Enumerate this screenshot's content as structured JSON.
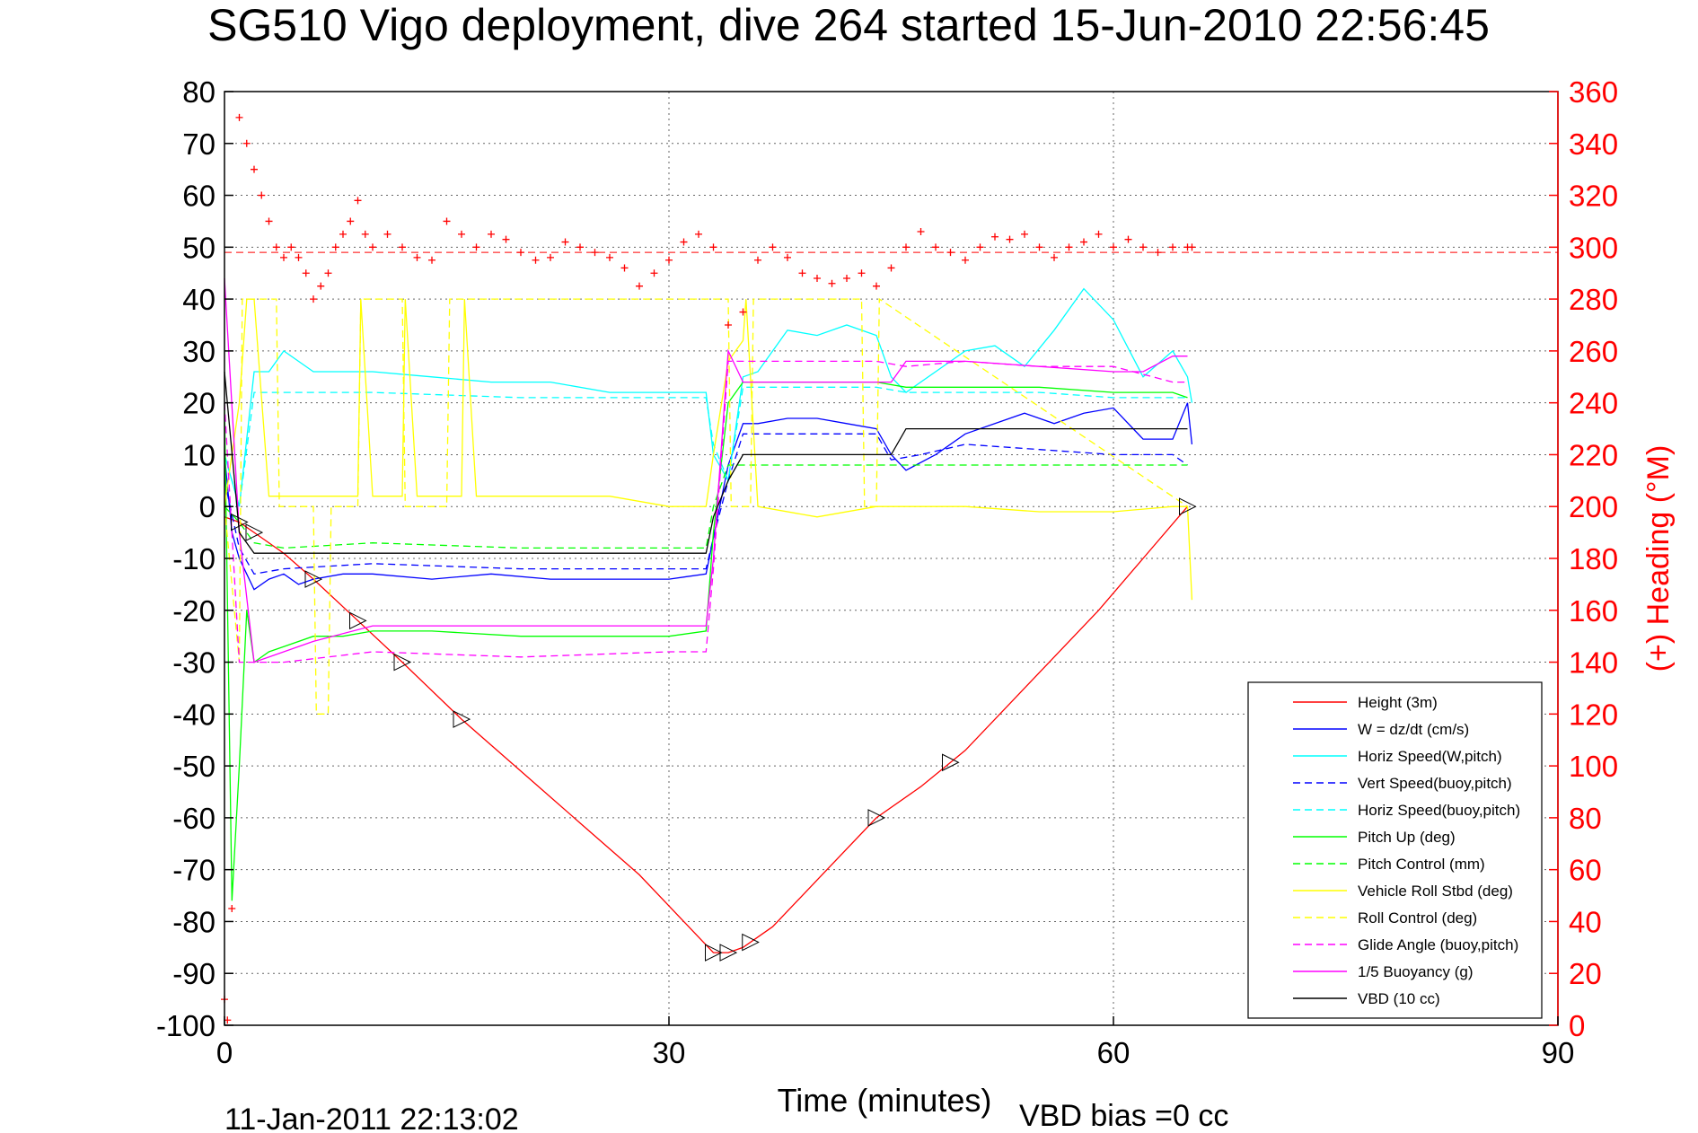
{
  "title": "SG510 Vigo deployment, dive 264 started 15-Jun-2010 22:56:45",
  "footer_left": "11-Jan-2011 22:13:02",
  "footer_right": "VBD bias =0 cc",
  "chart_data": {
    "type": "line",
    "title": "SG510 Vigo deployment, dive 264 started 15-Jun-2010 22:56:45",
    "xlabel": "Time (minutes)",
    "ylabel_right": "(+) Heading (°M)",
    "xlim": [
      0,
      90
    ],
    "ylim": [
      -100,
      80
    ],
    "ylim_right": [
      0,
      360
    ],
    "xticks": [
      "0",
      "30",
      "60",
      "90"
    ],
    "yticks": [
      "80",
      "70",
      "60",
      "50",
      "40",
      "30",
      "20",
      "10",
      "0",
      "-10",
      "-20",
      "-30",
      "-40",
      "-50",
      "-60",
      "-70",
      "-80",
      "-90",
      "-100"
    ],
    "yticks_right": [
      "360",
      "340",
      "320",
      "300",
      "280",
      "260",
      "240",
      "220",
      "200",
      "180",
      "160",
      "140",
      "120",
      "100",
      "80",
      "60",
      "40",
      "20",
      "0"
    ],
    "grid": true,
    "legend_position": "bottom-right",
    "heading_mean_line": 298,
    "colors": {
      "red": "#ff0000",
      "blue": "#0000ff",
      "cyan": "#00ffff",
      "green": "#00ff00",
      "yellow": "#ffff00",
      "magenta": "#ff00ff",
      "black": "#000000"
    },
    "series": [
      {
        "name": "Height (3m)",
        "color": "#ff0000",
        "dash": false,
        "x": [
          0,
          1,
          2,
          4,
          6,
          9,
          12,
          16,
          20,
          24,
          28,
          30,
          32,
          33,
          34,
          35,
          37,
          40,
          44,
          47,
          50,
          53,
          56,
          59,
          62,
          65
        ],
        "y": [
          -2,
          -3,
          -5,
          -9,
          -14,
          -22,
          -30,
          -41,
          -51,
          -61,
          -71,
          -77,
          -83,
          -86,
          -86,
          -85,
          -81,
          -72,
          -60,
          -54,
          -47,
          -38,
          -29,
          -20,
          -10,
          0
        ]
      },
      {
        "name": "W = dz/dt (cm/s)",
        "color": "#0000ff",
        "dash": false,
        "x": [
          0,
          0.5,
          1,
          2,
          3,
          4,
          5,
          6,
          8,
          10,
          14,
          18,
          22,
          26,
          30,
          32.5,
          33,
          34,
          35,
          36,
          38,
          40,
          42,
          44,
          45,
          46,
          48,
          50,
          52,
          54,
          56,
          58,
          60,
          62,
          64,
          65,
          65.3
        ],
        "y": [
          10,
          -5,
          -10,
          -16,
          -14,
          -13,
          -15,
          -14,
          -13,
          -13,
          -14,
          -13,
          -14,
          -14,
          -14,
          -13,
          -6,
          8,
          16,
          16,
          17,
          17,
          16,
          15,
          10,
          7,
          10,
          14,
          16,
          18,
          16,
          18,
          19,
          13,
          13,
          20,
          12
        ]
      },
      {
        "name": "Horiz Speed(W,pitch)",
        "color": "#00ffff",
        "dash": false,
        "x": [
          0,
          1,
          2,
          3,
          4,
          6,
          8,
          10,
          14,
          18,
          22,
          26,
          30,
          32.5,
          33,
          34,
          35,
          36,
          38,
          40,
          42,
          44,
          45,
          46,
          48,
          50,
          52,
          54,
          56,
          58,
          60,
          62,
          64,
          65,
          65.3
        ],
        "y": [
          10,
          0,
          26,
          26,
          30,
          26,
          26,
          26,
          25,
          24,
          24,
          22,
          22,
          22,
          10,
          5,
          25,
          26,
          34,
          33,
          35,
          33,
          25,
          22,
          26,
          30,
          31,
          27,
          34,
          42,
          36,
          25,
          30,
          25,
          20
        ]
      },
      {
        "name": "Vert Speed(buoy,pitch)",
        "color": "#0000ff",
        "dash": true,
        "x": [
          0,
          1,
          2,
          4,
          10,
          20,
          30,
          32.5,
          33,
          34,
          35,
          38,
          44,
          45,
          47,
          50,
          55,
          60,
          64,
          65
        ],
        "y": [
          5,
          -8,
          -13,
          -12,
          -11,
          -12,
          -12,
          -12,
          -6,
          5,
          14,
          14,
          14,
          9,
          10,
          12,
          11,
          10,
          10,
          8
        ]
      },
      {
        "name": "Horiz Speed(buoy,pitch)",
        "color": "#00ffff",
        "dash": true,
        "x": [
          0,
          1,
          2,
          4,
          10,
          20,
          30,
          32.5,
          33,
          34,
          35,
          40,
          44,
          46,
          50,
          55,
          60,
          64,
          65
        ],
        "y": [
          10,
          0,
          22,
          22,
          22,
          21,
          21,
          21,
          12,
          5,
          23,
          23,
          23,
          22,
          22,
          22,
          21,
          21,
          21
        ]
      },
      {
        "name": "Pitch Up (deg)",
        "color": "#00ff00",
        "dash": false,
        "x": [
          0,
          0.5,
          1,
          1.5,
          2,
          3,
          4,
          6,
          8,
          10,
          14,
          20,
          26,
          30,
          32.5,
          33,
          34,
          35,
          38,
          44,
          46,
          50,
          55,
          60,
          64,
          65
        ],
        "y": [
          20,
          -76,
          -50,
          -20,
          -30,
          -28,
          -27,
          -25,
          -25,
          -24,
          -24,
          -25,
          -25,
          -25,
          -24,
          -5,
          20,
          24,
          24,
          24,
          23,
          23,
          23,
          22,
          22,
          21
        ]
      },
      {
        "name": "Pitch Control (mm)",
        "color": "#00ff00",
        "dash": true,
        "x": [
          0,
          1,
          2,
          4,
          10,
          20,
          30,
          32.5,
          33,
          34,
          35,
          45,
          50,
          60,
          65
        ],
        "y": [
          0,
          -3,
          -7,
          -8,
          -7,
          -8,
          -8,
          -8,
          0,
          8,
          8,
          8,
          8,
          8,
          8
        ]
      },
      {
        "name": "Vehicle Roll Stbd (deg)",
        "color": "#ffff00",
        "dash": false,
        "x": [
          0,
          1,
          1.5,
          2,
          3,
          4,
          6,
          9,
          9.2,
          10,
          12,
          12.2,
          13,
          16,
          16.2,
          17,
          20,
          26,
          30,
          32.5,
          33,
          34,
          35,
          35.2,
          36,
          40,
          44,
          48,
          50,
          55,
          60,
          64,
          65,
          65.3
        ],
        "y": [
          0,
          20,
          40,
          40,
          2,
          2,
          2,
          2,
          40,
          2,
          2,
          40,
          2,
          2,
          40,
          2,
          2,
          2,
          0,
          0,
          10,
          28,
          32,
          40,
          0,
          -2,
          0,
          0,
          0,
          -1,
          -1,
          0,
          0,
          -18
        ]
      },
      {
        "name": "Roll Control (deg)",
        "color": "#ffff00",
        "dash": true,
        "x": [
          0,
          1,
          1.2,
          3.5,
          3.7,
          6,
          6.2,
          7,
          7.2,
          9,
          9.2,
          12,
          12.2,
          15,
          15.2,
          34,
          34.2,
          35.5,
          35.7,
          43,
          43.2,
          44,
          44.2,
          65
        ],
        "y": [
          0,
          -30,
          40,
          40,
          0,
          0,
          -40,
          -40,
          0,
          0,
          40,
          40,
          0,
          0,
          40,
          40,
          0,
          0,
          40,
          40,
          0,
          0,
          40,
          0
        ]
      },
      {
        "name": "Glide Angle (buoy,pitch)",
        "color": "#ff00ff",
        "dash": true,
        "x": [
          0,
          1,
          2,
          4,
          10,
          20,
          30,
          32.5,
          33,
          34,
          35,
          40,
          44,
          46,
          50,
          55,
          60,
          64,
          65
        ],
        "y": [
          20,
          -30,
          -30,
          -30,
          -28,
          -29,
          -28,
          -28,
          -12,
          28,
          28,
          28,
          28,
          27,
          28,
          27,
          27,
          24,
          24
        ]
      },
      {
        "name": "1/5 Buoyancy (g)",
        "color": "#ff00ff",
        "dash": false,
        "x": [
          0,
          1,
          2,
          4,
          6,
          10,
          20,
          30,
          32.5,
          33,
          34,
          35,
          40,
          45,
          46,
          50,
          55,
          60,
          62,
          64,
          65
        ],
        "y": [
          44,
          -5,
          -30,
          -28,
          -26,
          -23,
          -23,
          -23,
          -23,
          -10,
          30,
          24,
          24,
          24,
          28,
          28,
          27,
          26,
          26,
          29,
          29
        ]
      },
      {
        "name": "VBD (10 cc)",
        "color": "#000000",
        "dash": false,
        "x": [
          0,
          1,
          2,
          4,
          10,
          20,
          30,
          32.5,
          33,
          34,
          35,
          40,
          45,
          46,
          50,
          55,
          60,
          65
        ],
        "y": [
          26,
          -5,
          -9,
          -9,
          -9,
          -9,
          -9,
          -9,
          -2,
          5,
          10,
          10,
          10,
          15,
          15,
          15,
          15,
          15
        ]
      }
    ],
    "heading": {
      "name": "(+) Heading",
      "color": "#ff0000",
      "x": [
        0,
        0.2,
        0.5,
        1,
        1.5,
        2,
        2.5,
        3,
        3.5,
        4,
        4.5,
        5,
        5.5,
        6,
        6.5,
        7,
        7.5,
        8,
        8.5,
        9,
        9.5,
        10,
        11,
        12,
        13,
        14,
        15,
        16,
        17,
        18,
        19,
        20,
        21,
        22,
        23,
        24,
        25,
        26,
        27,
        28,
        29,
        30,
        31,
        32,
        33,
        34,
        35,
        36,
        37,
        38,
        39,
        40,
        41,
        42,
        43,
        44,
        45,
        46,
        47,
        48,
        49,
        50,
        51,
        52,
        53,
        54,
        55,
        56,
        57,
        58,
        59,
        60,
        61,
        62,
        63,
        64,
        65,
        65.3
      ],
      "y": [
        10,
        2,
        45,
        350,
        340,
        330,
        320,
        310,
        300,
        296,
        300,
        296,
        290,
        280,
        285,
        290,
        300,
        305,
        310,
        318,
        305,
        300,
        305,
        300,
        296,
        295,
        310,
        305,
        300,
        305,
        303,
        298,
        295,
        296,
        302,
        300,
        298,
        296,
        292,
        285,
        290,
        295,
        302,
        305,
        300,
        270,
        275,
        295,
        300,
        296,
        290,
        288,
        286,
        288,
        290,
        285,
        292,
        300,
        306,
        300,
        298,
        295,
        300,
        304,
        303,
        305,
        300,
        296,
        300,
        302,
        305,
        300,
        303,
        300,
        298,
        300,
        300,
        300
      ]
    }
  }
}
